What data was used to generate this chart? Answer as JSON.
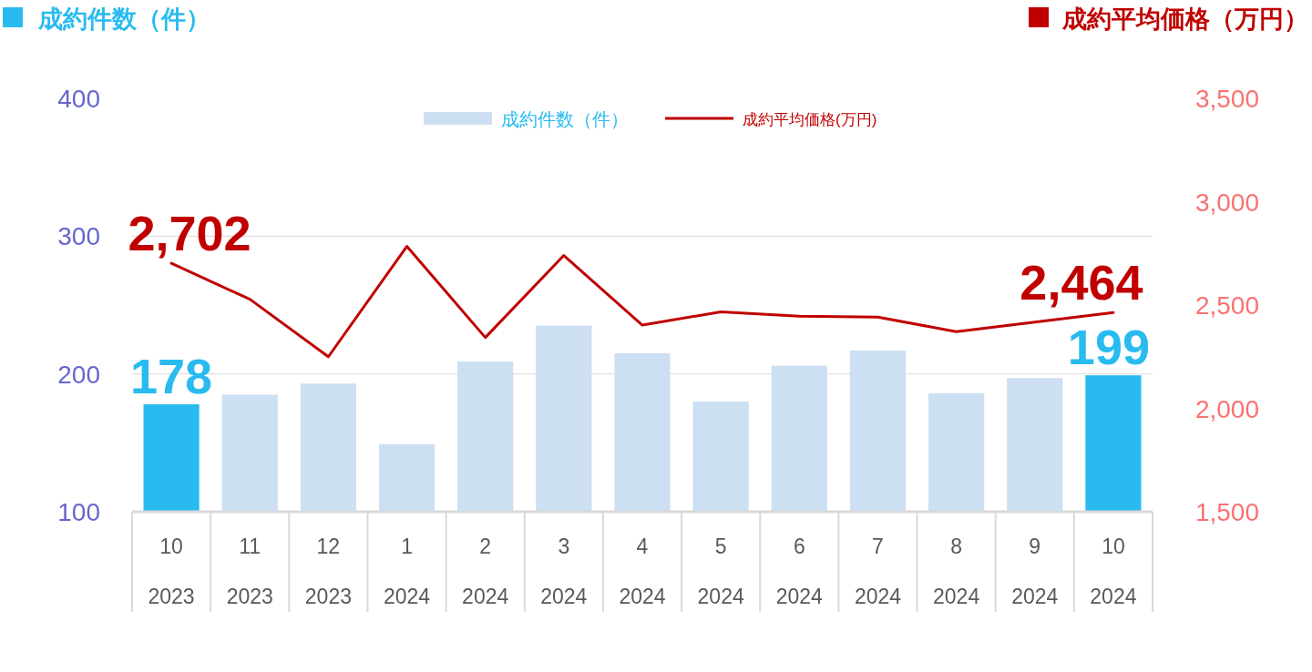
{
  "chart_data": {
    "type": "bar",
    "ylabel": "成約件数（件）",
    "y2label": "成約平均価格（万円）",
    "categories": [
      "10\n2023",
      "11\n2023",
      "12\n2023",
      "1\n2024",
      "2\n2024",
      "3\n2024",
      "4\n2024",
      "5\n2024",
      "6\n2024",
      "7\n2024",
      "8\n2024",
      "9\n2024",
      "10\n2024"
    ],
    "ylim": [
      100,
      400
    ],
    "yticks": [
      100,
      200,
      300,
      400
    ],
    "y2lim": [
      1500,
      3500
    ],
    "y2ticks": [
      {
        "value": 1500,
        "label": "1,500"
      },
      {
        "value": 2000,
        "label": "2,000"
      },
      {
        "value": 2500,
        "label": "2,500"
      },
      {
        "value": 3000,
        "label": "3,000"
      },
      {
        "value": 3500,
        "label": "3,500"
      }
    ],
    "grid": "y",
    "legend": "top",
    "series": [
      {
        "name": "成約件数（件）",
        "color": "#cddff2",
        "colors": [
          "#29bbef",
          "#cddff2",
          "#cddff2",
          "#cddff2",
          "#cddff2",
          "#cddff2",
          "#cddff2",
          "#cddff2",
          "#cddff2",
          "#cddff2",
          "#cddff2",
          "#cddff2",
          "#29bbef"
        ],
        "values": [
          178,
          185,
          193,
          149,
          209,
          235,
          215,
          180,
          206,
          217,
          186,
          197,
          199
        ],
        "value_labels": [
          "178",
          null,
          null,
          null,
          null,
          null,
          null,
          null,
          null,
          null,
          null,
          null,
          "199"
        ]
      },
      {
        "name": "成約平均価格(万円)",
        "type": "line",
        "axis": "y2",
        "color": "#c00000",
        "values": [
          2702,
          2528,
          2250,
          2784,
          2343,
          2740,
          2403,
          2467,
          2446,
          2442,
          2371,
          2417,
          2464
        ],
        "value_labels": [
          "2,702",
          null,
          null,
          null,
          null,
          null,
          null,
          null,
          null,
          null,
          null,
          null,
          "2,464"
        ]
      }
    ]
  }
}
